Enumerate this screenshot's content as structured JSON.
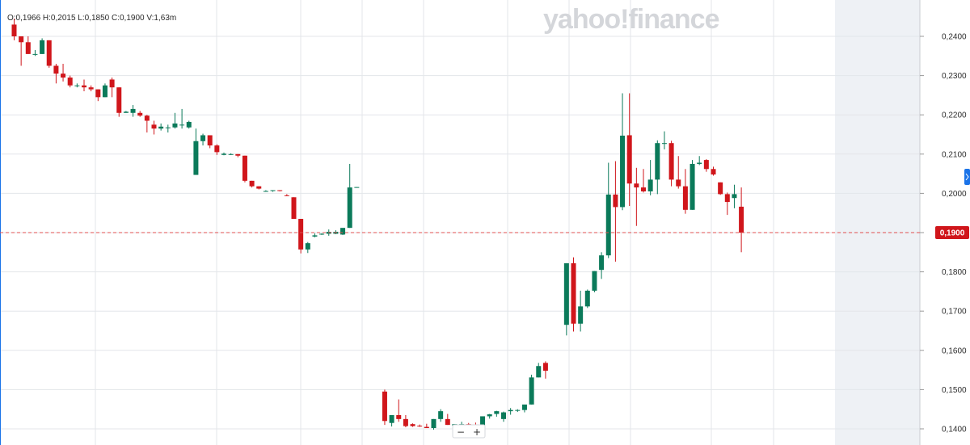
{
  "header": {
    "ohlc": "O:0,1966  H:0,2015  L:0,1850  C:0,1900  V:1,63m",
    "brand": "yahoo!finance"
  },
  "zoom": {
    "minus": "−",
    "plus": "+"
  },
  "colors": {
    "up": "#0b7a5a",
    "down": "#d0161b",
    "price_line": "#e05050",
    "future_shade": "#eef1f5",
    "side_tab": "#1a73e8"
  },
  "chart_data": {
    "type": "candlestick",
    "ylim": [
      0.139,
      0.249
    ],
    "yticks": [
      0.14,
      0.15,
      0.16,
      0.17,
      0.18,
      0.19,
      0.2,
      0.21,
      0.22,
      0.23,
      0.24
    ],
    "ytick_labels": [
      "0,1400",
      "0,1500",
      "0,1600",
      "0,1700",
      "0,1800",
      "0,1900",
      "0,2000",
      "0,2100",
      "0,2200",
      "0,2300",
      "0,2400"
    ],
    "last_price": 0.19,
    "last_price_label": "0,1900",
    "grid": true,
    "candles": [
      [
        0.243,
        0.2445,
        0.239,
        0.24
      ],
      [
        0.24,
        0.24,
        0.2325,
        0.2385
      ],
      [
        0.2385,
        0.24,
        0.2355,
        0.2355
      ],
      [
        0.2355,
        0.2365,
        0.235,
        0.2355
      ],
      [
        0.2355,
        0.2395,
        0.2355,
        0.239
      ],
      [
        0.239,
        0.239,
        0.232,
        0.2325
      ],
      [
        0.2325,
        0.233,
        0.228,
        0.2305
      ],
      [
        0.2305,
        0.233,
        0.2285,
        0.2295
      ],
      [
        0.2295,
        0.23,
        0.227,
        0.2275
      ],
      [
        0.2275,
        0.228,
        0.227,
        0.2275
      ],
      [
        0.2275,
        0.229,
        0.226,
        0.227
      ],
      [
        0.227,
        0.2275,
        0.226,
        0.2265
      ],
      [
        0.2265,
        0.2265,
        0.2235,
        0.2245
      ],
      [
        0.2245,
        0.228,
        0.2245,
        0.2275
      ],
      [
        0.229,
        0.2295,
        0.2245,
        0.227
      ],
      [
        0.227,
        0.227,
        0.2195,
        0.2205
      ],
      [
        0.2205,
        0.221,
        0.2205,
        0.2208
      ],
      [
        0.2205,
        0.2225,
        0.2195,
        0.2215
      ],
      [
        0.2205,
        0.221,
        0.2195,
        0.2198
      ],
      [
        0.2198,
        0.22,
        0.2155,
        0.2185
      ],
      [
        0.2175,
        0.2185,
        0.215,
        0.2165
      ],
      [
        0.2165,
        0.2178,
        0.216,
        0.217
      ],
      [
        0.2168,
        0.2175,
        0.2155,
        0.2168
      ],
      [
        0.2168,
        0.2205,
        0.2165,
        0.2178
      ],
      [
        0.2175,
        0.2215,
        0.2165,
        0.2175
      ],
      [
        0.2168,
        0.2185,
        0.2165,
        0.2182
      ],
      [
        0.2047,
        0.2165,
        0.2047,
        0.2133
      ],
      [
        0.2133,
        0.2152,
        0.2122,
        0.2148
      ],
      [
        0.2148,
        0.2148,
        0.2115,
        0.2122
      ],
      [
        0.2122,
        0.2125,
        0.2098,
        0.2105
      ],
      [
        0.2098,
        0.2104,
        0.2097,
        0.2101
      ],
      [
        0.21,
        0.2102,
        0.2098,
        0.21
      ],
      [
        0.21,
        0.21,
        0.2092,
        0.2096
      ],
      [
        0.2096,
        0.2096,
        0.2028,
        0.2032
      ],
      [
        0.2032,
        0.2032,
        0.2015,
        0.2018
      ],
      [
        0.2018,
        0.2018,
        0.201,
        0.2012
      ],
      [
        0.2006,
        0.2008,
        0.2004,
        0.2006
      ],
      [
        0.2006,
        0.2008,
        0.2004,
        0.2008
      ],
      [
        0.2008,
        0.2008,
        0.2005,
        0.2006
      ],
      [
        0.1995,
        0.1998,
        0.1993,
        0.1993
      ],
      [
        0.199,
        0.199,
        0.1935,
        0.1935
      ],
      [
        0.1935,
        0.1935,
        0.1847,
        0.1857
      ],
      [
        0.1857,
        0.1876,
        0.1848,
        0.1873
      ],
      [
        0.189,
        0.1898,
        0.1888,
        0.1893
      ],
      [
        0.1895,
        0.1898,
        0.1894,
        0.1897
      ],
      [
        0.1897,
        0.1908,
        0.1892,
        0.1902
      ],
      [
        0.1897,
        0.1906,
        0.1896,
        0.1902
      ],
      [
        0.1895,
        0.191,
        0.1894,
        0.1912
      ],
      [
        0.1912,
        0.2075,
        0.1912,
        0.2015
      ],
      [
        0.2015,
        0.2016,
        0.2015,
        0.2016
      ],
      null,
      null,
      null,
      [
        0.1495,
        0.15,
        0.141,
        0.142
      ],
      [
        0.1415,
        0.1435,
        0.1406,
        0.1435
      ],
      [
        0.1435,
        0.1475,
        0.1418,
        0.1425
      ],
      [
        0.1425,
        0.1435,
        0.1404,
        0.1407
      ],
      [
        0.1412,
        0.1414,
        0.1405,
        0.1407
      ],
      [
        0.1408,
        0.1411,
        0.1405,
        0.1406
      ],
      [
        0.1405,
        0.1413,
        0.1402,
        0.1402
      ],
      [
        0.1402,
        0.1425,
        0.1398,
        0.1425
      ],
      [
        0.1425,
        0.145,
        0.1418,
        0.1445
      ],
      [
        0.1425,
        0.1438,
        0.141,
        0.141
      ],
      [
        0.1408,
        0.1412,
        0.1405,
        0.1412
      ],
      [
        0.1412,
        0.1418,
        0.1405,
        0.1412
      ],
      [
        0.1412,
        0.1415,
        0.1406,
        0.1408
      ],
      [
        0.141,
        0.1416,
        0.1403,
        0.1408
      ],
      [
        0.1408,
        0.1425,
        0.1403,
        0.1432
      ],
      [
        0.1432,
        0.1438,
        0.1426,
        0.1437
      ],
      [
        0.1438,
        0.1446,
        0.1431,
        0.1445
      ],
      [
        0.1425,
        0.1444,
        0.1418,
        0.1442
      ],
      [
        0.1445,
        0.1453,
        0.1436,
        0.1448
      ],
      [
        0.1448,
        0.145,
        0.1443,
        0.1448
      ],
      [
        0.1448,
        0.1456,
        0.1442,
        0.1462
      ],
      [
        0.1462,
        0.1538,
        0.1462,
        0.1531
      ],
      [
        0.1531,
        0.1568,
        0.1531,
        0.156
      ],
      [
        0.1568,
        0.1572,
        0.1528,
        0.1548
      ],
      null,
      null,
      [
        0.1665,
        0.1822,
        0.1638,
        0.1822
      ],
      [
        0.1822,
        0.1837,
        0.1648,
        0.1668
      ],
      [
        0.1668,
        0.1752,
        0.1648,
        0.1712
      ],
      [
        0.1712,
        0.1755,
        0.1708,
        0.1752
      ],
      [
        0.1752,
        0.1802,
        0.1748,
        0.1802
      ],
      [
        0.1805,
        0.185,
        0.1782,
        0.1842
      ],
      [
        0.1842,
        0.2078,
        0.1835,
        0.1997
      ],
      [
        0.1997,
        0.2082,
        0.1826,
        0.1965
      ],
      [
        0.1965,
        0.2255,
        0.1957,
        0.2147
      ],
      [
        0.2148,
        0.2255,
        0.1968,
        0.2025
      ],
      [
        0.2025,
        0.2065,
        0.1917,
        0.2015
      ],
      [
        0.2015,
        0.2062,
        0.2002,
        0.2005
      ],
      [
        0.2005,
        0.2085,
        0.1995,
        0.2035
      ],
      [
        0.2035,
        0.2135,
        0.1998,
        0.2128
      ],
      [
        0.2128,
        0.2158,
        0.2112,
        0.2128
      ],
      [
        0.2128,
        0.2134,
        0.2018,
        0.2035
      ],
      [
        0.2035,
        0.2095,
        0.2012,
        0.2018
      ],
      [
        0.2018,
        0.2062,
        0.1948,
        0.1958
      ],
      [
        0.1958,
        0.2085,
        0.1958,
        0.2075
      ],
      [
        0.2075,
        0.2095,
        0.2072,
        0.2078
      ],
      [
        0.2085,
        0.2087,
        0.2055,
        0.2062
      ],
      [
        0.2062,
        0.2068,
        0.2045,
        0.2048
      ],
      [
        0.2028,
        0.2028,
        0.1996,
        0.1998
      ],
      [
        0.1998,
        0.2002,
        0.1945,
        0.1978
      ],
      [
        0.1988,
        0.2022,
        0.1962,
        0.1998
      ],
      [
        0.1966,
        0.2015,
        0.185,
        0.19
      ]
    ]
  }
}
